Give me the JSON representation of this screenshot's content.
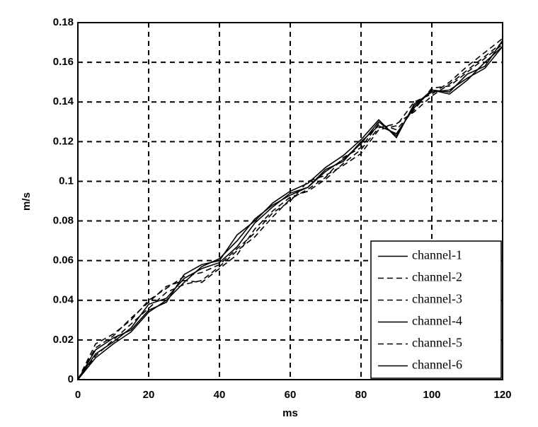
{
  "chart_data": {
    "type": "line",
    "xlabel": "ms",
    "ylabel": "m/s",
    "x": [
      0,
      5,
      10,
      15,
      20,
      25,
      30,
      35,
      40,
      45,
      50,
      55,
      60,
      65,
      70,
      75,
      80,
      85,
      90,
      95,
      100,
      105,
      110,
      115,
      120
    ],
    "series": [
      {
        "name": "channel-1",
        "color": "#000000",
        "dash": "solid",
        "values": [
          0,
          0.013,
          0.019,
          0.026,
          0.038,
          0.041,
          0.051,
          0.056,
          0.059,
          0.067,
          0.079,
          0.087,
          0.094,
          0.097,
          0.105,
          0.111,
          0.119,
          0.13,
          0.123,
          0.138,
          0.146,
          0.145,
          0.154,
          0.158,
          0.171
        ]
      },
      {
        "name": "channel-2",
        "color": "#000000",
        "dash": "dashed",
        "values": [
          0,
          0.018,
          0.023,
          0.03,
          0.04,
          0.046,
          0.052,
          0.054,
          0.058,
          0.066,
          0.074,
          0.084,
          0.09,
          0.1,
          0.103,
          0.108,
          0.114,
          0.126,
          0.128,
          0.14,
          0.144,
          0.15,
          0.158,
          0.165,
          0.172
        ]
      },
      {
        "name": "channel-3",
        "color": "#000000",
        "dash": "dashed",
        "values": [
          0,
          0.012,
          0.02,
          0.028,
          0.036,
          0.044,
          0.048,
          0.05,
          0.057,
          0.065,
          0.072,
          0.082,
          0.091,
          0.096,
          0.102,
          0.112,
          0.117,
          0.129,
          0.126,
          0.136,
          0.147,
          0.148,
          0.155,
          0.162,
          0.169
        ]
      },
      {
        "name": "channel-4",
        "color": "#000000",
        "dash": "solid",
        "values": [
          0,
          0.015,
          0.021,
          0.025,
          0.035,
          0.039,
          0.053,
          0.058,
          0.06,
          0.073,
          0.08,
          0.089,
          0.095,
          0.099,
          0.107,
          0.113,
          0.121,
          0.131,
          0.122,
          0.139,
          0.145,
          0.146,
          0.152,
          0.157,
          0.168
        ]
      },
      {
        "name": "channel-5",
        "color": "#000000",
        "dash": "dashed",
        "values": [
          0,
          0.016,
          0.022,
          0.031,
          0.039,
          0.047,
          0.05,
          0.049,
          0.056,
          0.063,
          0.076,
          0.085,
          0.092,
          0.095,
          0.101,
          0.109,
          0.116,
          0.127,
          0.129,
          0.135,
          0.143,
          0.149,
          0.156,
          0.163,
          0.17
        ]
      },
      {
        "name": "channel-6",
        "color": "#000000",
        "dash": "solid",
        "values": [
          0,
          0.011,
          0.018,
          0.024,
          0.034,
          0.04,
          0.049,
          0.057,
          0.061,
          0.07,
          0.081,
          0.088,
          0.093,
          0.097,
          0.106,
          0.11,
          0.12,
          0.128,
          0.124,
          0.137,
          0.146,
          0.144,
          0.151,
          0.16,
          0.168
        ]
      }
    ],
    "xlim": [
      0,
      120
    ],
    "xticks": [
      0,
      20,
      40,
      60,
      80,
      100,
      120
    ],
    "ylim": [
      0,
      0.18
    ],
    "yticks": [
      0,
      0.02,
      0.04,
      0.06,
      0.08,
      0.1,
      0.12,
      0.14,
      0.16,
      0.18
    ],
    "grid": true,
    "legend": "lower right"
  }
}
